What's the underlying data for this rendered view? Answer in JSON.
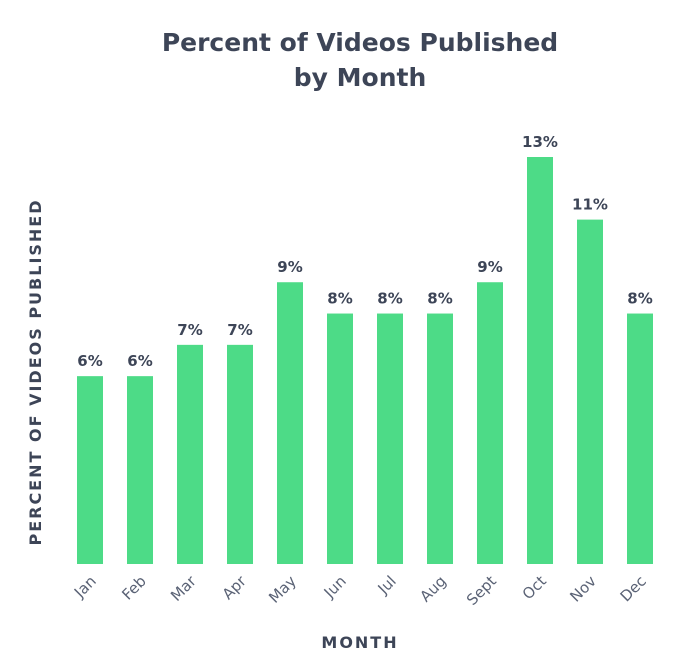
{
  "chart_data": {
    "type": "bar",
    "title_lines": [
      "Percent of Videos Published",
      "by Month"
    ],
    "xlabel": "MONTH",
    "ylabel": "PERCENT OF VIDEOS PUBLISHED",
    "categories": [
      "Jan",
      "Feb",
      "Mar",
      "Apr",
      "May",
      "Jun",
      "Jul",
      "Aug",
      "Sept",
      "Oct",
      "Nov",
      "Dec"
    ],
    "values": [
      6,
      6,
      7,
      7,
      9,
      8,
      8,
      8,
      9,
      13,
      11,
      8
    ],
    "value_labels": [
      "6%",
      "6%",
      "7%",
      "7%",
      "9%",
      "8%",
      "8%",
      "8%",
      "9%",
      "13%",
      "11%",
      "8%"
    ],
    "ylim": [
      0,
      13.5
    ],
    "grid": false,
    "bar_color": "#4ddb87",
    "text_color": "#3d4557"
  }
}
